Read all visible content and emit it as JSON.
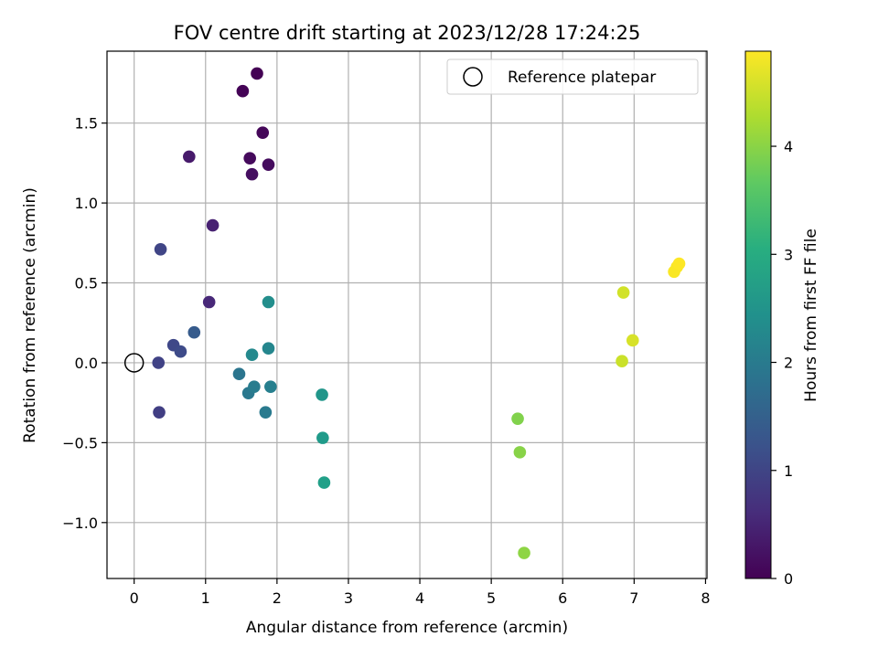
{
  "chart_data": {
    "type": "scatter",
    "title": "FOV centre drift starting at 2023/12/28 17:24:25",
    "xlabel": "Angular distance from reference (arcmin)",
    "ylabel": "Rotation from reference (arcmin)",
    "xlim": [
      -0.38,
      8.02
    ],
    "ylim": [
      -1.35,
      1.95
    ],
    "x_ticks": [
      0,
      1,
      2,
      3,
      4,
      5,
      6,
      7,
      8
    ],
    "y_ticks": [
      -1.0,
      -0.5,
      0.0,
      0.5,
      1.0,
      1.5
    ],
    "x_tick_labels": [
      "0",
      "1",
      "2",
      "3",
      "4",
      "5",
      "6",
      "7",
      "8"
    ],
    "y_tick_labels": [
      "−1.0",
      "−0.5",
      "0.0",
      "0.5",
      "1.0",
      "1.5"
    ],
    "grid": true,
    "legend": {
      "placement": "top-right",
      "entries": [
        "Reference platepar"
      ]
    },
    "reference": {
      "x": 0,
      "y": 0
    },
    "colorbar": {
      "label": "Hours from first FF file",
      "range": [
        0,
        4.88
      ],
      "ticks": [
        0,
        1,
        2,
        3,
        4
      ],
      "tick_labels": [
        "0",
        "1",
        "2",
        "3",
        "4"
      ],
      "colormap": "viridis"
    },
    "points": [
      {
        "x": 1.72,
        "y": 1.81,
        "c": 0.0
      },
      {
        "x": 1.52,
        "y": 1.7,
        "c": 0.03
      },
      {
        "x": 1.8,
        "y": 1.44,
        "c": 0.08
      },
      {
        "x": 1.62,
        "y": 1.28,
        "c": 0.12
      },
      {
        "x": 1.88,
        "y": 1.24,
        "c": 0.15
      },
      {
        "x": 1.65,
        "y": 1.18,
        "c": 0.18
      },
      {
        "x": 0.77,
        "y": 1.29,
        "c": 0.35
      },
      {
        "x": 1.1,
        "y": 0.86,
        "c": 0.45
      },
      {
        "x": 1.05,
        "y": 0.38,
        "c": 0.55
      },
      {
        "x": 0.37,
        "y": 0.71,
        "c": 1.0
      },
      {
        "x": 0.55,
        "y": 0.11,
        "c": 1.05
      },
      {
        "x": 0.65,
        "y": 0.07,
        "c": 1.1
      },
      {
        "x": 0.34,
        "y": 0.0,
        "c": 0.95
      },
      {
        "x": 0.35,
        "y": -0.31,
        "c": 0.9
      },
      {
        "x": 0.84,
        "y": 0.19,
        "c": 1.4
      },
      {
        "x": 1.47,
        "y": -0.07,
        "c": 1.9
      },
      {
        "x": 1.6,
        "y": -0.19,
        "c": 1.95
      },
      {
        "x": 1.68,
        "y": -0.15,
        "c": 2.05
      },
      {
        "x": 1.91,
        "y": -0.15,
        "c": 2.1
      },
      {
        "x": 1.84,
        "y": -0.31,
        "c": 2.0
      },
      {
        "x": 1.65,
        "y": 0.05,
        "c": 2.3
      },
      {
        "x": 1.88,
        "y": 0.09,
        "c": 2.25
      },
      {
        "x": 1.88,
        "y": 0.38,
        "c": 2.4
      },
      {
        "x": 2.63,
        "y": -0.2,
        "c": 2.55
      },
      {
        "x": 2.64,
        "y": -0.47,
        "c": 2.65
      },
      {
        "x": 2.66,
        "y": -0.75,
        "c": 2.75
      },
      {
        "x": 5.37,
        "y": -0.35,
        "c": 3.95
      },
      {
        "x": 5.4,
        "y": -0.56,
        "c": 4.0
      },
      {
        "x": 5.46,
        "y": -1.19,
        "c": 4.05
      },
      {
        "x": 6.85,
        "y": 0.44,
        "c": 4.55
      },
      {
        "x": 6.98,
        "y": 0.14,
        "c": 4.6
      },
      {
        "x": 6.83,
        "y": 0.01,
        "c": 4.5
      },
      {
        "x": 7.56,
        "y": 0.57,
        "c": 4.85
      },
      {
        "x": 7.6,
        "y": 0.6,
        "c": 4.85
      },
      {
        "x": 7.63,
        "y": 0.62,
        "c": 4.88
      }
    ]
  }
}
